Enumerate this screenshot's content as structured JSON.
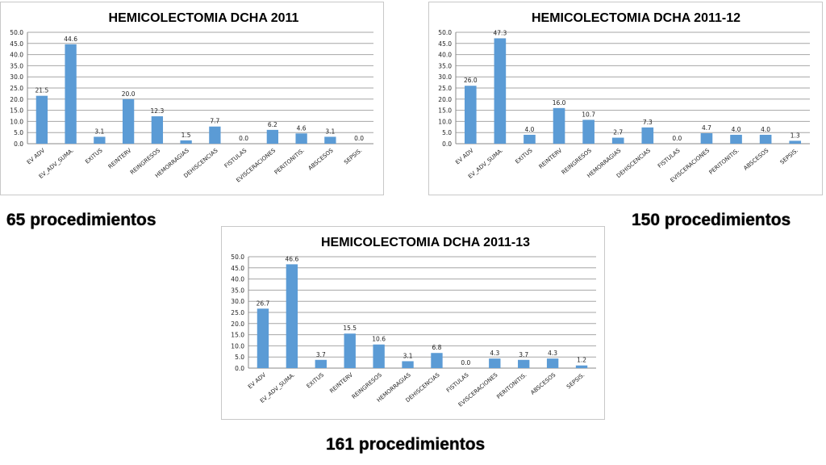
{
  "chart_data": [
    {
      "type": "bar",
      "title": "HEMICOLECTOMIA DCHA  2011",
      "categories": [
        "EV ADV",
        "EV_ADV_SUMA.",
        "EXITUS",
        "REINTERV",
        "REINGRESOS",
        "HEMORRAGIAS",
        "DEHISCENCIAS",
        "FISTULAS",
        "EVISCERACIONES",
        "PERITONITIS.",
        "ABSCESOS",
        "SEPSIS."
      ],
      "values": [
        21.5,
        44.6,
        3.1,
        20.0,
        12.3,
        1.5,
        7.7,
        0.0,
        6.2,
        4.6,
        3.1,
        0.0
      ],
      "value_labels": [
        "21.5",
        "44.6",
        "3.1",
        "20.0",
        "12.3",
        "1.5",
        "7.7",
        "0.0",
        "6.2",
        "4.6",
        "3.1",
        "0.0"
      ],
      "yticks": [
        "0.0",
        "5.0",
        "10.0",
        "15.0",
        "20.0",
        "25.0",
        "30.0",
        "35.0",
        "40.0",
        "45.0",
        "50.0"
      ],
      "ylim": [
        0,
        50
      ],
      "grid": true,
      "bar_color": "#5b9bd5"
    },
    {
      "type": "bar",
      "title": "HEMICOLECTOMIA DCHA  2011-12",
      "categories": [
        "EV ADV",
        "EV_ADV_SUMA.",
        "EXITUS",
        "REINTERV",
        "REINGRESOS",
        "HEMORRAGIAS",
        "DEHISCENCIAS",
        "FISTULAS",
        "EVISCERACIONES",
        "PERITONITIS.",
        "ABSCESOS",
        "SEPSIS."
      ],
      "values": [
        26.0,
        47.3,
        4.0,
        16.0,
        10.7,
        2.7,
        7.3,
        0.0,
        4.7,
        4.0,
        4.0,
        1.3
      ],
      "value_labels": [
        "26.0",
        "47.3",
        "4.0",
        "16.0",
        "10.7",
        "2.7",
        "7.3",
        "0.0",
        "4.7",
        "4.0",
        "4.0",
        "1.3"
      ],
      "yticks": [
        "0.0",
        "5.0",
        "10.0",
        "15.0",
        "20.0",
        "25.0",
        "30.0",
        "35.0",
        "40.0",
        "45.0",
        "50.0"
      ],
      "ylim": [
        0,
        50
      ],
      "grid": true,
      "bar_color": "#5b9bd5"
    },
    {
      "type": "bar",
      "title": "HEMICOLECTOMIA DCHA  2011-13",
      "categories": [
        "EV ADV",
        "EV_ADV_SUMA.",
        "EXITUS",
        "REINTERV",
        "REINGRESOS",
        "HEMORRAGIAS",
        "DEHISCENCIAS",
        "FISTULAS",
        "EVISCERACIONES",
        "PERITONITIS.",
        "ABSCESOS",
        "SEPSIS."
      ],
      "values": [
        26.7,
        46.6,
        3.7,
        15.5,
        10.6,
        3.1,
        6.8,
        0.0,
        4.3,
        3.7,
        4.3,
        1.2
      ],
      "value_labels": [
        "26.7",
        "46.6",
        "3.7",
        "15.5",
        "10.6",
        "3.1",
        "6.8",
        "0.0",
        "4.3",
        "3.7",
        "4.3",
        "1.2"
      ],
      "yticks": [
        "0.0",
        "5.0",
        "10.0",
        "15.0",
        "20.0",
        "25.0",
        "30.0",
        "35.0",
        "40.0",
        "45.0",
        "50.0"
      ],
      "ylim": [
        0,
        50
      ],
      "grid": true,
      "bar_color": "#5b9bd5"
    }
  ],
  "captions": {
    "c2011": "65 procedimientos",
    "c2012": "150 procedimientos",
    "c2013": "161 procedimientos"
  }
}
